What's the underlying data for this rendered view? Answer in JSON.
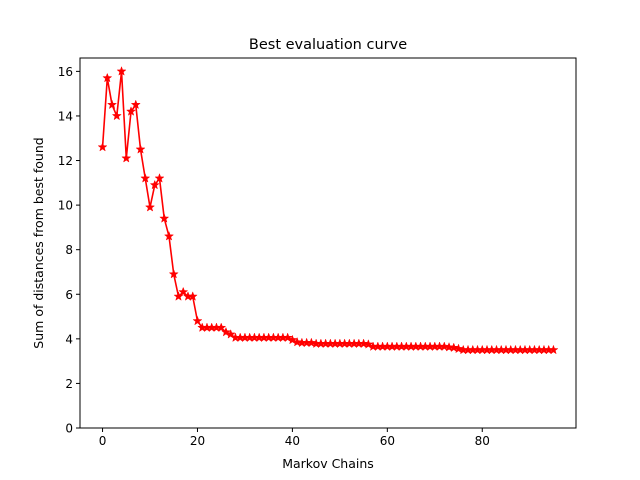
{
  "chart_data": {
    "type": "line",
    "title": "Best evaluation curve",
    "xlabel": "Markov Chains",
    "ylabel": "Sum of distances from best found",
    "xlim": [
      -4.75,
      99.75
    ],
    "ylim": [
      0,
      16.6
    ],
    "xticks": [
      0,
      20,
      40,
      60,
      80
    ],
    "yticks": [
      0,
      2,
      4,
      6,
      8,
      10,
      12,
      14,
      16
    ],
    "grid": false,
    "marker": "star",
    "color": "#ff0000",
    "series": [
      {
        "x": [
          0,
          1,
          2,
          3,
          4,
          5,
          6,
          7,
          8,
          9,
          10,
          11,
          12,
          13,
          14,
          15,
          16,
          17,
          18,
          19,
          20,
          21,
          22,
          23,
          24,
          25,
          26,
          27,
          28,
          29,
          30,
          31,
          32,
          33,
          34,
          35,
          36,
          37,
          38,
          39,
          40,
          41,
          42,
          43,
          44,
          45,
          46,
          47,
          48,
          49,
          50,
          51,
          52,
          53,
          54,
          55,
          56,
          57,
          58,
          59,
          60,
          61,
          62,
          63,
          64,
          65,
          66,
          67,
          68,
          69,
          70,
          71,
          72,
          73,
          74,
          75,
          76,
          77,
          78,
          79,
          80,
          81,
          82,
          83,
          84,
          85,
          86,
          87,
          88,
          89,
          90,
          91,
          92,
          93,
          94,
          95
        ],
        "y": [
          12.6,
          15.7,
          14.5,
          14.0,
          16.0,
          12.1,
          14.2,
          14.5,
          12.5,
          11.2,
          9.9,
          10.9,
          11.2,
          9.4,
          8.6,
          6.9,
          5.9,
          6.1,
          5.9,
          5.9,
          4.8,
          4.5,
          4.5,
          4.5,
          4.5,
          4.5,
          4.3,
          4.2,
          4.05,
          4.05,
          4.05,
          4.05,
          4.05,
          4.05,
          4.05,
          4.05,
          4.05,
          4.05,
          4.05,
          4.05,
          3.95,
          3.85,
          3.82,
          3.82,
          3.82,
          3.78,
          3.78,
          3.78,
          3.78,
          3.78,
          3.78,
          3.78,
          3.78,
          3.78,
          3.78,
          3.78,
          3.75,
          3.65,
          3.65,
          3.65,
          3.65,
          3.65,
          3.65,
          3.65,
          3.65,
          3.65,
          3.65,
          3.65,
          3.65,
          3.65,
          3.65,
          3.65,
          3.65,
          3.62,
          3.6,
          3.55,
          3.5,
          3.5,
          3.5,
          3.5,
          3.5,
          3.5,
          3.5,
          3.5,
          3.5,
          3.5,
          3.5,
          3.5,
          3.5,
          3.5,
          3.5,
          3.5,
          3.5,
          3.5,
          3.5,
          3.5
        ]
      }
    ]
  }
}
